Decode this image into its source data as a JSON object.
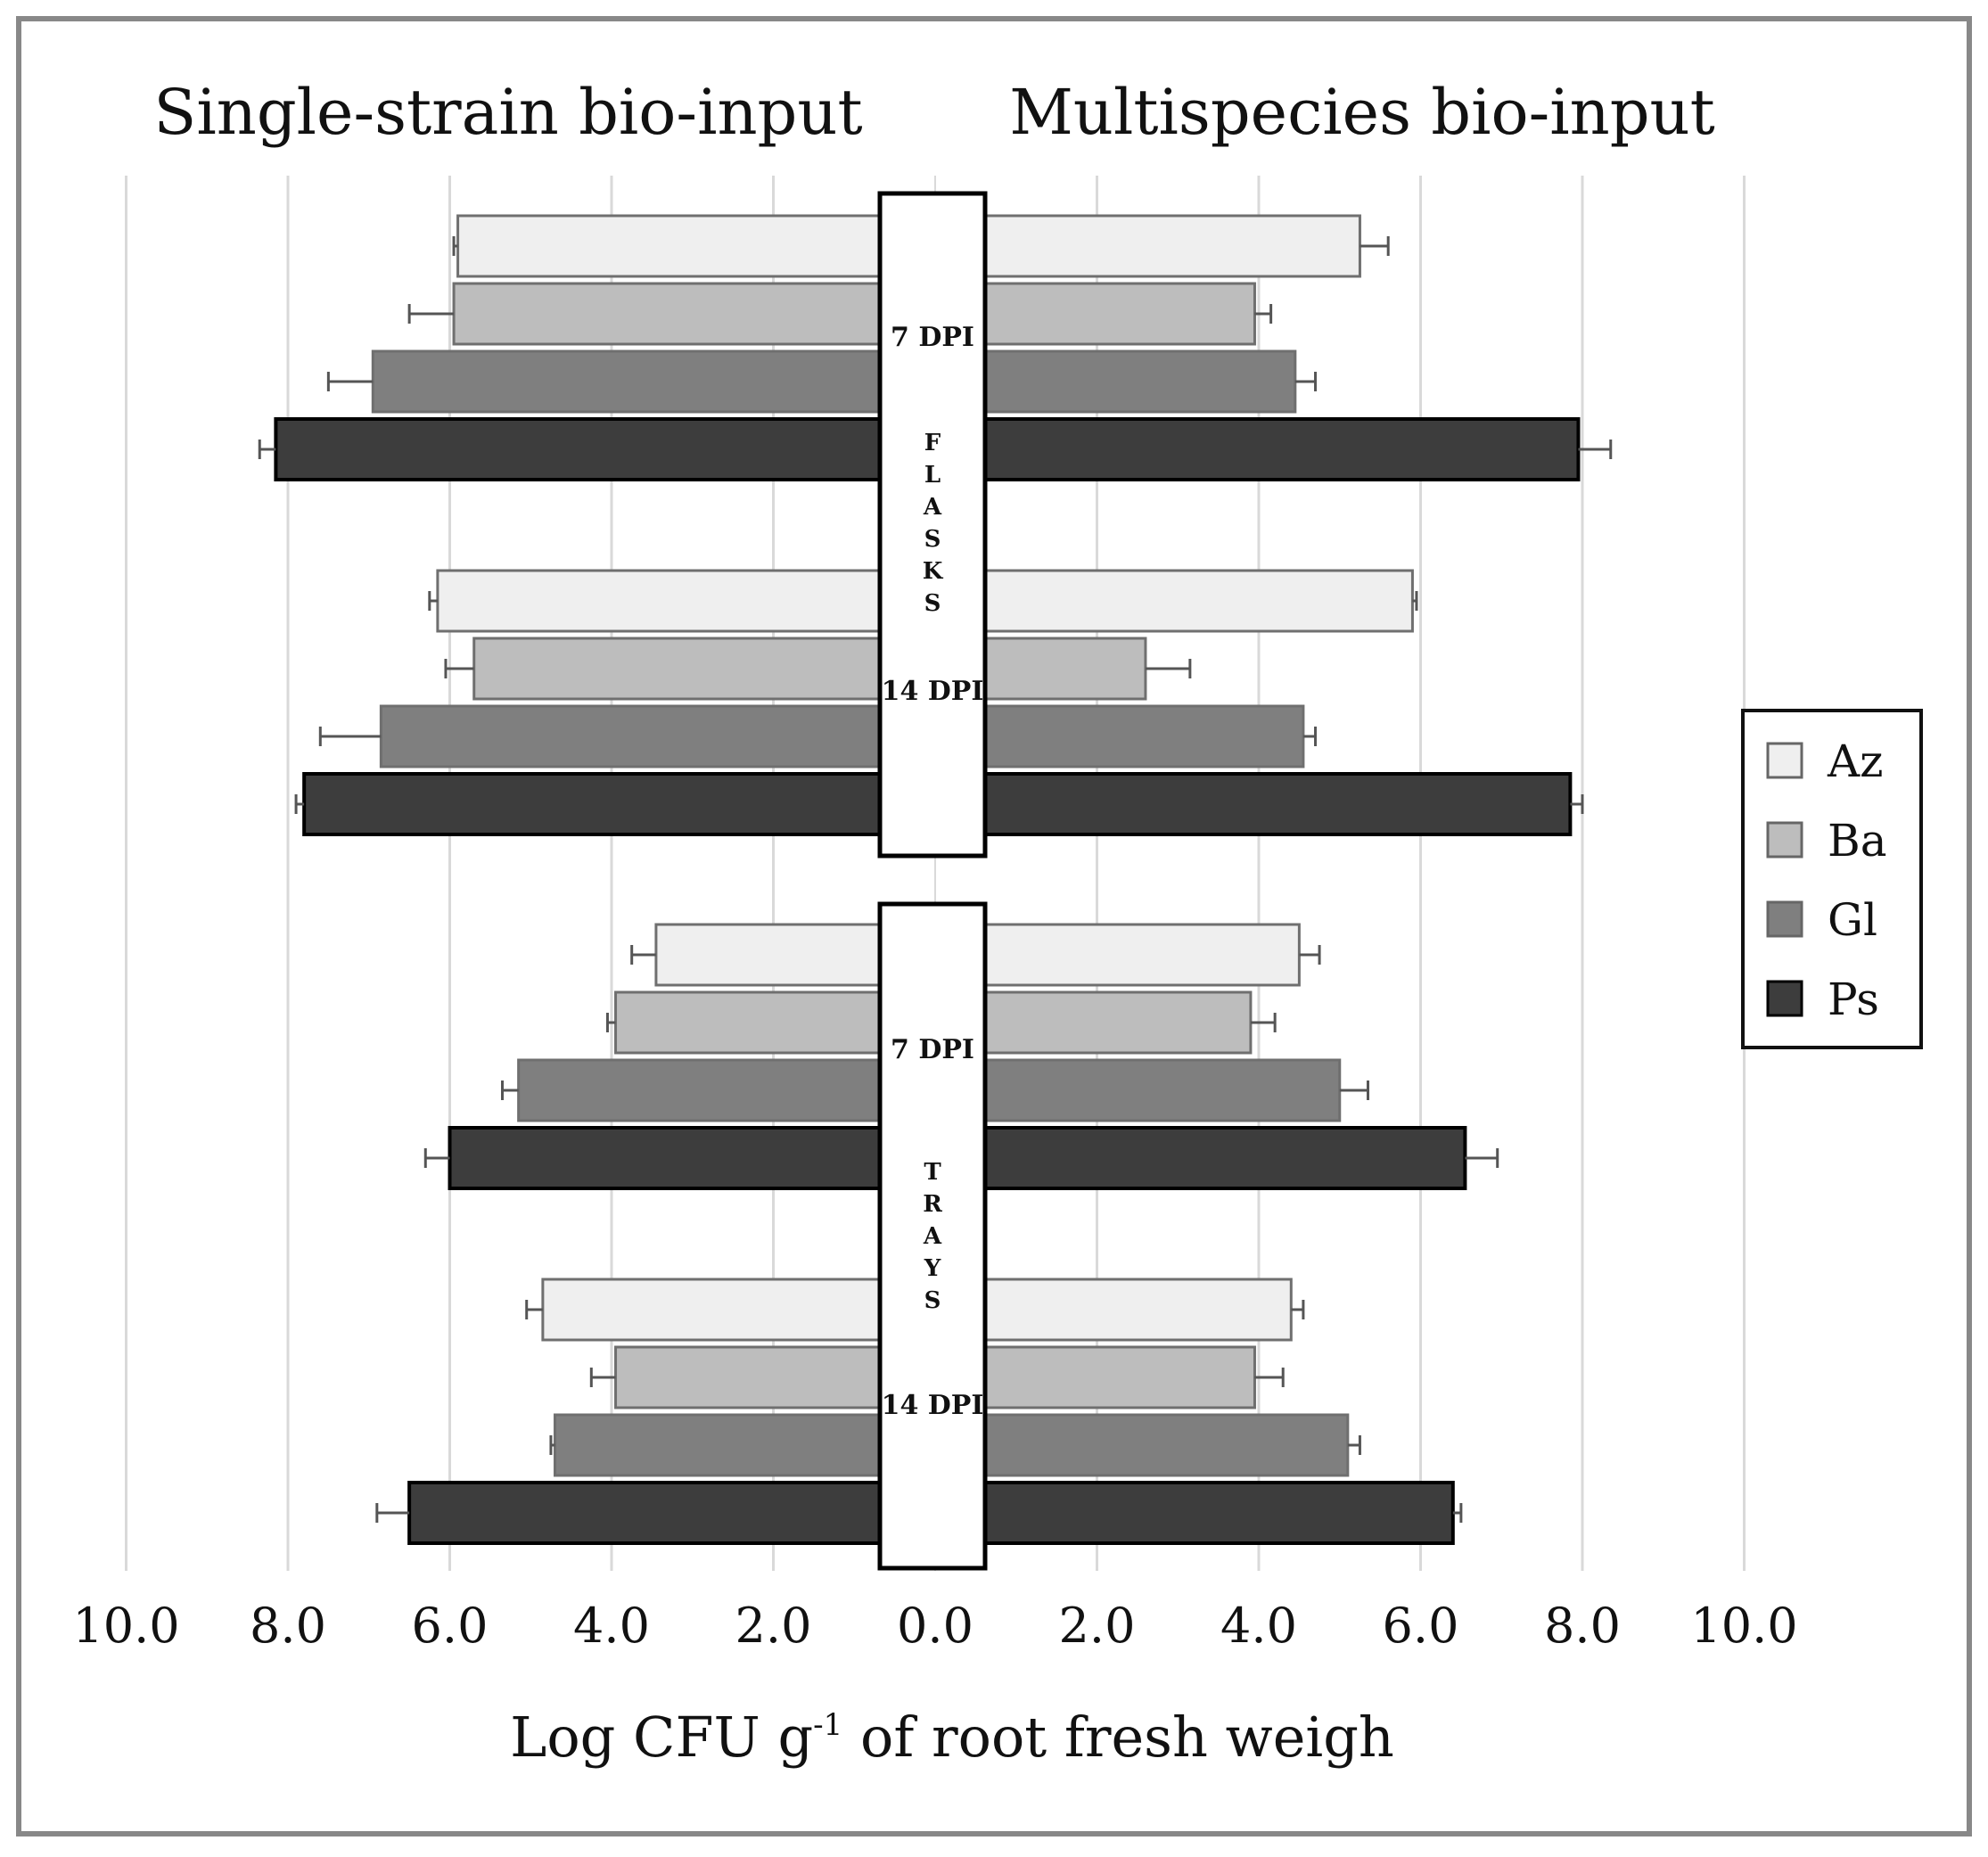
{
  "chart_data": {
    "type": "bar",
    "orientation": "horizontal-butterfly",
    "left_title": "Single-strain bio-input",
    "right_title": "Multispecies bio-input",
    "xlabel": {
      "main": "Log CFU g",
      "sup": "-1",
      "tail": " of root fresh weigh"
    },
    "xlim": [
      0,
      10
    ],
    "tick_values": [
      10,
      8,
      6,
      4,
      2,
      0,
      2,
      4,
      6,
      8,
      10
    ],
    "tick_labels": [
      "10.0",
      "8.0",
      "6.0",
      "4.0",
      "2.0",
      "0.0",
      "2.0",
      "4.0",
      "6.0",
      "8.0",
      "10.0"
    ],
    "grid": true,
    "series_colors": {
      "Az": "#efefef",
      "Ba": "#bdbdbd",
      "Gl": "#7f7f7f",
      "Ps": "#3d3d3d"
    },
    "legend": {
      "position": "right",
      "items": [
        "Az",
        "Ba",
        "Gl",
        "Ps"
      ]
    },
    "blocks": [
      {
        "name": "FLASKS",
        "letters": [
          "F",
          "L",
          "A",
          "S",
          "K",
          "S"
        ],
        "groups": [
          {
            "label": "7 DPI",
            "bars": [
              {
                "series": "Az",
                "single": 5.9,
                "single_err": 0.05,
                "multi": 5.25,
                "multi_err": 0.35
              },
              {
                "series": "Ba",
                "single": 5.95,
                "single_err": 0.55,
                "multi": 3.95,
                "multi_err": 0.2
              },
              {
                "series": "Gl",
                "single": 6.95,
                "single_err": 0.55,
                "multi": 4.45,
                "multi_err": 0.25
              },
              {
                "series": "Ps",
                "single": 8.15,
                "single_err": 0.2,
                "multi": 7.95,
                "multi_err": 0.4
              }
            ]
          },
          {
            "label": "14 DPI",
            "bars": [
              {
                "series": "Az",
                "single": 6.15,
                "single_err": 0.1,
                "multi": 5.9,
                "multi_err": 0.05
              },
              {
                "series": "Ba",
                "single": 5.7,
                "single_err": 0.35,
                "multi": 2.6,
                "multi_err": 0.55
              },
              {
                "series": "Gl",
                "single": 6.85,
                "single_err": 0.75,
                "multi": 4.55,
                "multi_err": 0.15
              },
              {
                "series": "Ps",
                "single": 7.8,
                "single_err": 0.1,
                "multi": 7.85,
                "multi_err": 0.15
              }
            ]
          }
        ]
      },
      {
        "name": "TRAYS",
        "letters": [
          "T",
          "R",
          "A",
          "Y",
          "S"
        ],
        "groups": [
          {
            "label": "7 DPI",
            "bars": [
              {
                "series": "Az",
                "single": 3.45,
                "single_err": 0.3,
                "multi": 4.5,
                "multi_err": 0.25
              },
              {
                "series": "Ba",
                "single": 3.95,
                "single_err": 0.1,
                "multi": 3.9,
                "multi_err": 0.3
              },
              {
                "series": "Gl",
                "single": 5.15,
                "single_err": 0.2,
                "multi": 5.0,
                "multi_err": 0.35
              },
              {
                "series": "Ps",
                "single": 6.0,
                "single_err": 0.3,
                "multi": 6.55,
                "multi_err": 0.4
              }
            ]
          },
          {
            "label": "14 DPI",
            "bars": [
              {
                "series": "Az",
                "single": 4.85,
                "single_err": 0.2,
                "multi": 4.4,
                "multi_err": 0.15
              },
              {
                "series": "Ba",
                "single": 3.95,
                "single_err": 0.3,
                "multi": 3.95,
                "multi_err": 0.35
              },
              {
                "series": "Gl",
                "single": 4.7,
                "single_err": 0.05,
                "multi": 5.1,
                "multi_err": 0.15
              },
              {
                "series": "Ps",
                "single": 6.5,
                "single_err": 0.4,
                "multi": 6.4,
                "multi_err": 0.1
              }
            ]
          }
        ]
      }
    ]
  }
}
